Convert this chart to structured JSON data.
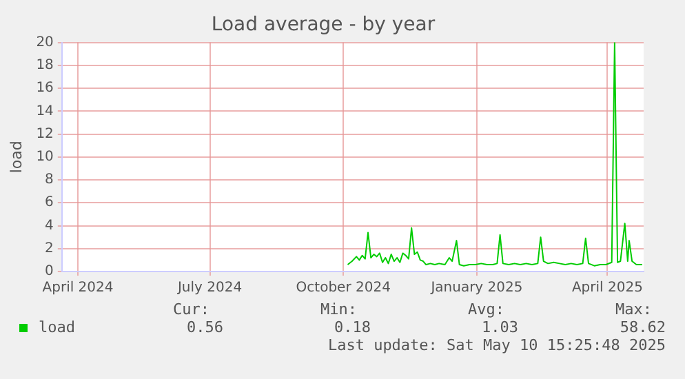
{
  "chart_data": {
    "type": "line",
    "title": "Load average - by year",
    "ylabel": "load",
    "x": [
      "2024-10-18",
      "2024-10-21",
      "2024-10-24",
      "2024-10-26",
      "2024-10-28",
      "2024-10-30",
      "2024-11-01",
      "2024-11-03",
      "2024-11-05",
      "2024-11-07",
      "2024-11-09",
      "2024-11-11",
      "2024-11-13",
      "2024-11-15",
      "2024-11-17",
      "2024-11-19",
      "2024-11-21",
      "2024-11-23",
      "2024-11-25",
      "2024-11-27",
      "2024-11-29",
      "2024-12-01",
      "2024-12-03",
      "2024-12-05",
      "2024-12-07",
      "2024-12-09",
      "2024-12-11",
      "2024-12-14",
      "2024-12-17",
      "2024-12-20",
      "2024-12-24",
      "2024-12-27",
      "2024-12-29",
      "2025-01-01",
      "2025-01-03",
      "2025-01-06",
      "2025-01-10",
      "2025-01-14",
      "2025-01-18",
      "2025-01-22",
      "2025-01-26",
      "2025-01-29",
      "2025-01-31",
      "2025-02-02",
      "2025-02-06",
      "2025-02-10",
      "2025-02-14",
      "2025-02-18",
      "2025-02-22",
      "2025-02-26",
      "2025-02-28",
      "2025-03-02",
      "2025-03-05",
      "2025-03-09",
      "2025-03-13",
      "2025-03-17",
      "2025-03-21",
      "2025-03-25",
      "2025-03-29",
      "2025-03-31",
      "2025-04-02",
      "2025-04-06",
      "2025-04-10",
      "2025-04-14",
      "2025-04-18",
      "2025-04-20",
      "2025-04-22",
      "2025-04-24",
      "2025-04-27",
      "2025-04-29",
      "2025-04-30",
      "2025-05-02",
      "2025-05-05",
      "2025-05-09"
    ],
    "series": [
      {
        "name": "load",
        "color": "#00cc00",
        "values": [
          0.6,
          0.9,
          1.3,
          1.0,
          1.4,
          1.1,
          3.4,
          1.2,
          1.5,
          1.3,
          1.6,
          0.8,
          1.2,
          0.7,
          1.5,
          0.9,
          1.2,
          0.8,
          1.6,
          1.4,
          1.1,
          3.8,
          1.5,
          1.7,
          1.0,
          0.9,
          0.6,
          0.7,
          0.6,
          0.7,
          0.6,
          1.2,
          0.9,
          2.7,
          0.6,
          0.5,
          0.6,
          0.6,
          0.7,
          0.6,
          0.6,
          0.7,
          3.2,
          0.7,
          0.6,
          0.7,
          0.6,
          0.7,
          0.6,
          0.7,
          3.0,
          0.9,
          0.7,
          0.8,
          0.7,
          0.6,
          0.7,
          0.6,
          0.7,
          2.9,
          0.7,
          0.5,
          0.6,
          0.6,
          0.8,
          20,
          0.8,
          0.9,
          4.2,
          0.9,
          2.7,
          0.9,
          0.6,
          0.6
        ]
      }
    ],
    "xlim": [
      "2024-04-04",
      "2025-05-10"
    ],
    "xticks": [
      {
        "value": "2024-04-15",
        "label": "April 2024"
      },
      {
        "value": "2024-07-15",
        "label": "July 2024"
      },
      {
        "value": "2024-10-15",
        "label": "October 2024"
      },
      {
        "value": "2025-01-15",
        "label": "January 2025"
      },
      {
        "value": "2025-04-15",
        "label": "April 2025"
      }
    ],
    "ylim": [
      0,
      20
    ],
    "yticks": [
      0,
      2,
      4,
      6,
      8,
      10,
      12,
      14,
      16,
      18,
      20
    ],
    "grid": true,
    "legend": "bottom",
    "marker": "none",
    "line_style": "solid",
    "annotations": [
      "Cur:",
      "Min:",
      "Avg:",
      "Max:",
      "0.56",
      "0.18",
      "1.03",
      "58.62",
      "Last update: Sat May 10 15:25:48 2025"
    ]
  }
}
